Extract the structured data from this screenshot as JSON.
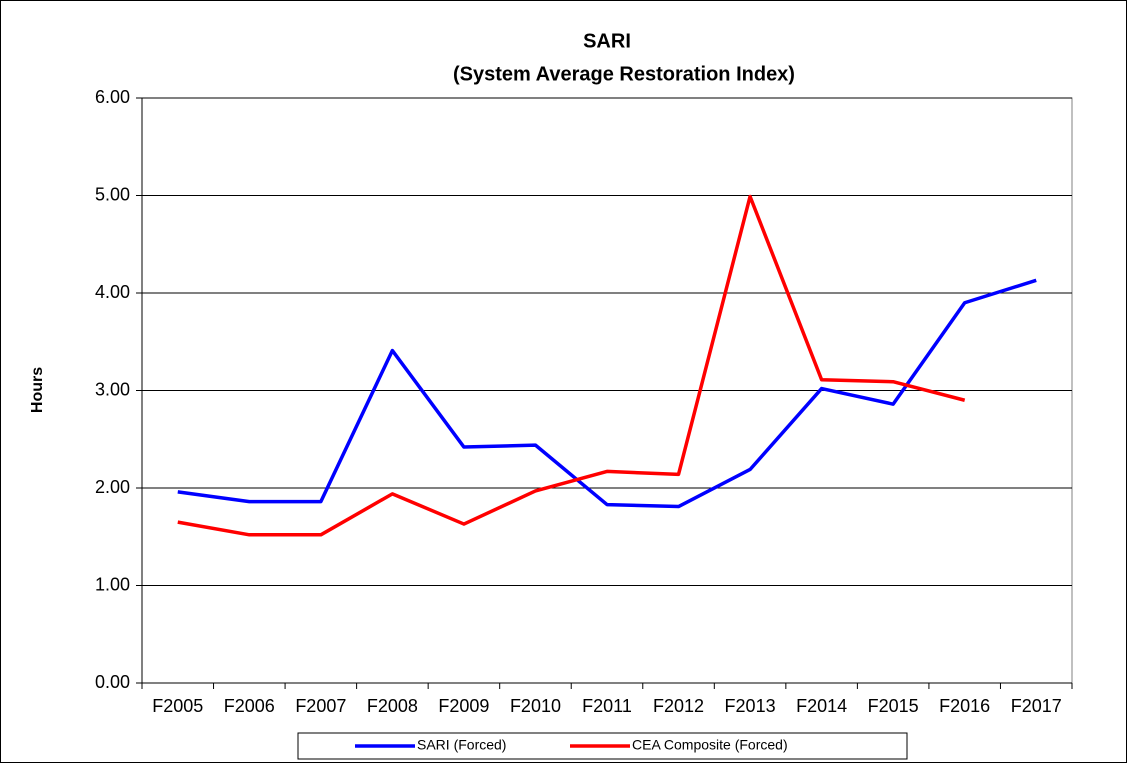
{
  "chart_data": {
    "type": "line",
    "title": "SARI",
    "subtitle": "(System Average Restoration Index)",
    "y_label": "Hours",
    "categories": [
      "F2005",
      "F2006",
      "F2007",
      "F2008",
      "F2009",
      "F2010",
      "F2011",
      "F2012",
      "F2013",
      "F2014",
      "F2015",
      "F2016",
      "F2017"
    ],
    "series": [
      {
        "name": "SARI (Forced)",
        "color": "#0000ff",
        "values": [
          1.96,
          1.86,
          1.86,
          3.41,
          2.42,
          2.44,
          1.83,
          1.81,
          2.19,
          3.02,
          2.86,
          3.9,
          4.13
        ]
      },
      {
        "name": "CEA Composite (Forced)",
        "color": "#ff0000",
        "values": [
          1.65,
          1.52,
          1.52,
          1.94,
          1.63,
          1.97,
          2.17,
          2.14,
          4.99,
          3.11,
          3.09,
          2.9,
          null
        ]
      }
    ],
    "ylim": [
      0,
      6
    ],
    "yticks": [
      {
        "value": 0,
        "label": "0.00"
      },
      {
        "value": 1,
        "label": "1.00"
      },
      {
        "value": 2,
        "label": "2.00"
      },
      {
        "value": 3,
        "label": "3.00"
      },
      {
        "value": 4,
        "label": "4.00"
      },
      {
        "value": 5,
        "label": "5.00"
      },
      {
        "value": 6,
        "label": "6.00"
      }
    ],
    "grid": true
  }
}
